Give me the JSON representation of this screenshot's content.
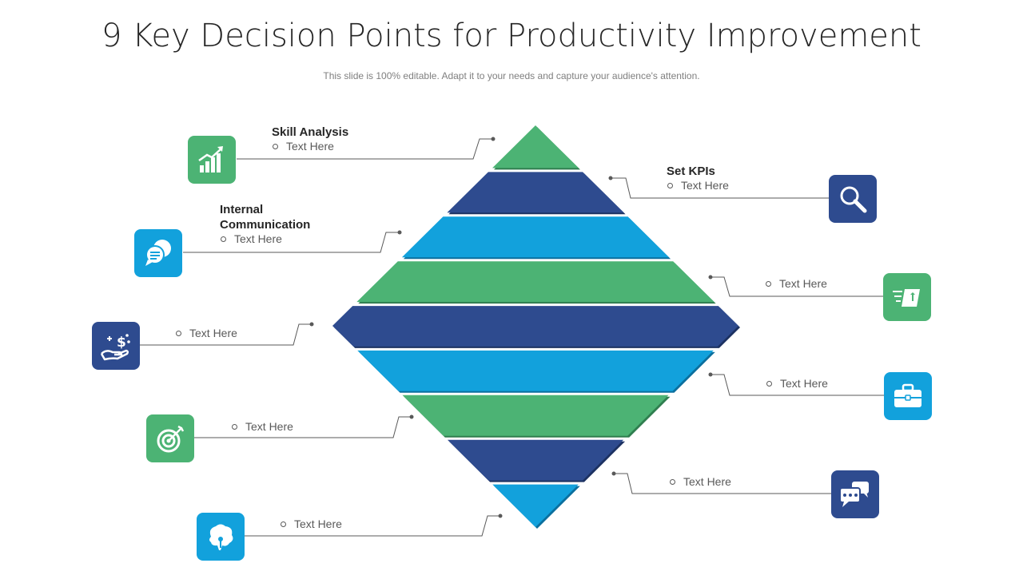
{
  "title": "9 Key Decision Points for Productivity Improvement",
  "subtitle": "This slide is 100% editable. Adapt it to your needs and capture your audience's attention.",
  "colors": {
    "green": "#4cb374",
    "navy": "#2e4b8f",
    "cyan": "#12a1dc",
    "line": "#595959"
  },
  "diamond_layers": [
    {
      "color": "green"
    },
    {
      "color": "navy"
    },
    {
      "color": "cyan"
    },
    {
      "color": "green"
    },
    {
      "color": "navy"
    },
    {
      "color": "cyan"
    },
    {
      "color": "green"
    },
    {
      "color": "navy"
    },
    {
      "color": "cyan"
    }
  ],
  "points": [
    {
      "heading": "Skill Analysis",
      "text": "Text Here",
      "icon": "growth-chart-icon",
      "color": "green"
    },
    {
      "heading": "Set KPIs",
      "text": "Text Here",
      "icon": "magnifier-icon",
      "color": "navy"
    },
    {
      "heading": "Internal Communication",
      "text": "Text Here",
      "icon": "chat-bubbles-icon",
      "color": "cyan"
    },
    {
      "text": "Text Here",
      "icon": "fast-delivery-box-icon",
      "color": "green"
    },
    {
      "text": "Text Here",
      "icon": "money-hand-icon",
      "color": "navy"
    },
    {
      "text": "Text Here",
      "icon": "briefcase-icon",
      "color": "cyan"
    },
    {
      "text": "Text Here",
      "icon": "target-icon",
      "color": "green"
    },
    {
      "text": "Text Here",
      "icon": "message-dots-icon",
      "color": "navy"
    },
    {
      "text": "Text Here",
      "icon": "brain-bulb-icon",
      "color": "cyan"
    }
  ]
}
